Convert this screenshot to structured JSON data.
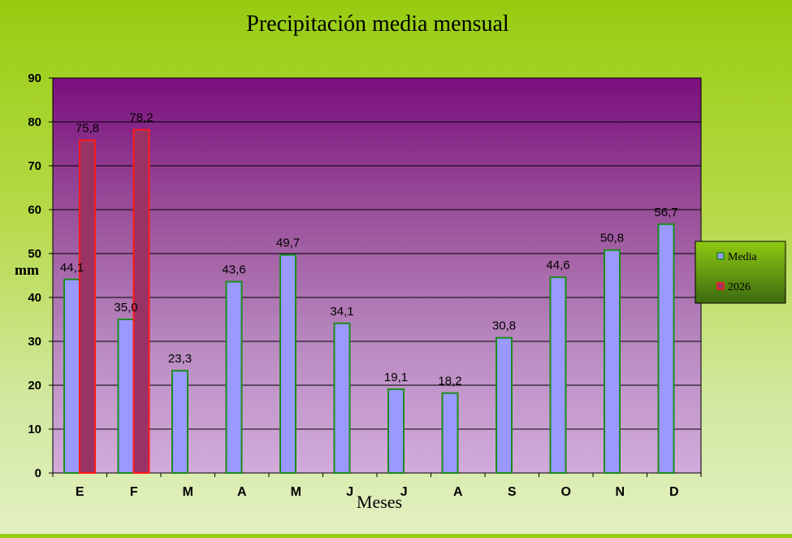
{
  "chart_data": {
    "type": "bar",
    "title": "Precipitación media mensual",
    "xlabel": "Meses",
    "ylabel": "mm",
    "ylim": [
      0,
      90
    ],
    "yticks": [
      0,
      10,
      20,
      30,
      40,
      50,
      60,
      70,
      80,
      90
    ],
    "grid": true,
    "legend_position": "right",
    "categories": [
      "E",
      "F",
      "M",
      "A",
      "M",
      "J",
      "J",
      "A",
      "S",
      "O",
      "N",
      "D"
    ],
    "series": [
      {
        "name": "Media",
        "color": "#9999ff",
        "border": "#1e8c1e",
        "values": [
          44.1,
          35.0,
          23.3,
          43.6,
          49.7,
          34.1,
          19.1,
          18.2,
          30.8,
          44.6,
          50.8,
          56.7
        ],
        "labels": [
          "44,1",
          "35,0",
          "23,3",
          "43,6",
          "49,7",
          "34,1",
          "19,1",
          "18,2",
          "30,8",
          "44,6",
          "50,8",
          "56,7"
        ]
      },
      {
        "name": "2026",
        "color": "#993366",
        "border": "#ff1a1a",
        "values": [
          75.8,
          78.2,
          null,
          null,
          null,
          null,
          null,
          null,
          null,
          null,
          null,
          null
        ],
        "labels": [
          "75,8",
          "78,2",
          "",
          "",
          "",
          "",
          "",
          "",
          "",
          "",
          "",
          ""
        ]
      }
    ]
  }
}
